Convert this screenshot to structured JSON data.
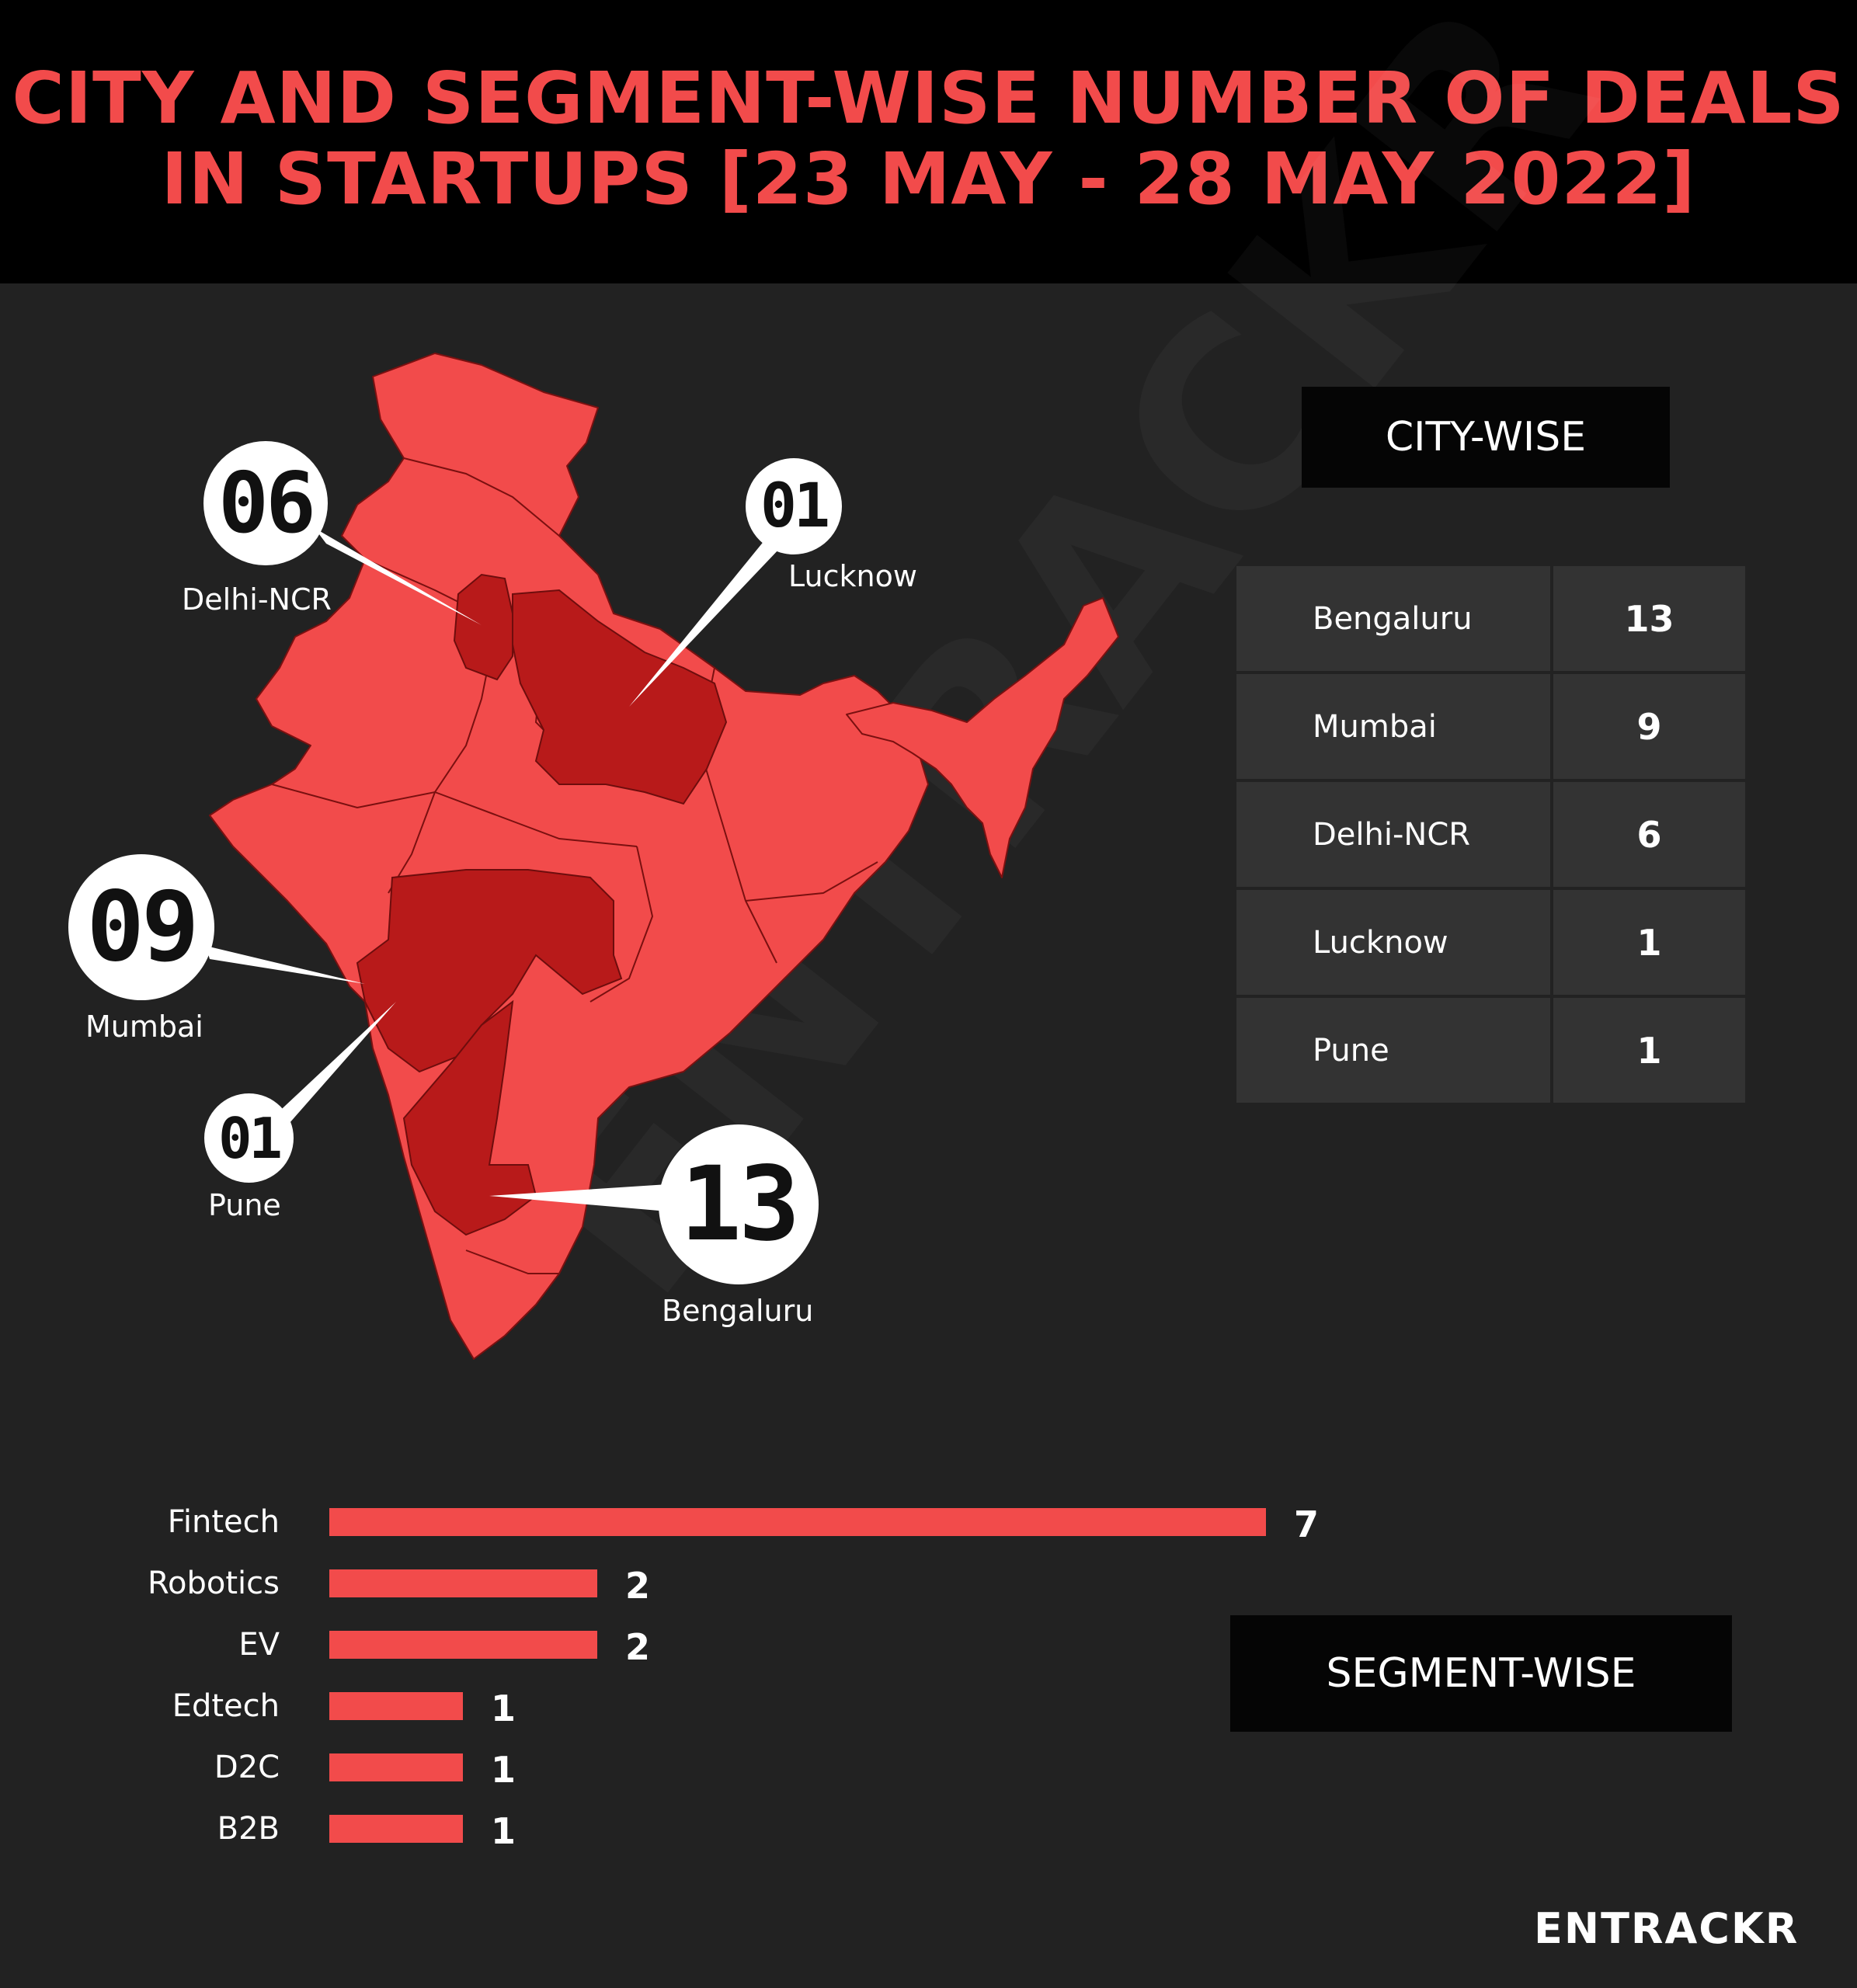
{
  "title_line1": "CITY AND SEGMENT-WISE NUMBER OF DEALS",
  "title_line2": "IN STARTUPS [23 MAY - 28 MAY 2022]",
  "brand": "ENTRACKR",
  "colors": {
    "accent": "#f24b4b",
    "highlight": "#b81a1a",
    "background": "#222222",
    "header": "#000000",
    "table_cell": "#333333"
  },
  "map": {
    "callouts": [
      {
        "value": "06",
        "city": "Delhi-NCR"
      },
      {
        "value": "01",
        "city": "Lucknow"
      },
      {
        "value": "09",
        "city": "Mumbai"
      },
      {
        "value": "01",
        "city": "Pune"
      },
      {
        "value": "13",
        "city": "Bengaluru"
      }
    ]
  },
  "chart_data": [
    {
      "type": "table",
      "title": "CITY-WISE",
      "rows": [
        {
          "city": "Bengaluru",
          "deals": 13
        },
        {
          "city": "Mumbai",
          "deals": 9
        },
        {
          "city": "Delhi-NCR",
          "deals": 6
        },
        {
          "city": "Lucknow",
          "deals": 1
        },
        {
          "city": "Pune",
          "deals": 1
        }
      ]
    },
    {
      "type": "bar",
      "orientation": "horizontal",
      "title": "SEGMENT-WISE",
      "categories": [
        "Fintech",
        "Robotics",
        "EV",
        "Edtech",
        "D2C",
        "B2B"
      ],
      "values": [
        7,
        2,
        2,
        1,
        1,
        1
      ],
      "xlim": [
        0,
        7
      ],
      "grid": false
    }
  ]
}
